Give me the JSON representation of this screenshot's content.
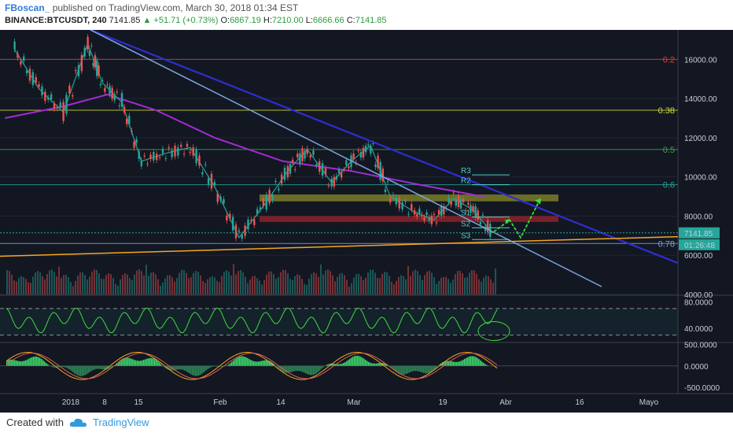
{
  "header": {
    "author": "FBoscan_",
    "published": "published on TradingView.com, March 30, 2018 01:34 EST",
    "symbol": "BINANCE:BTCUSDT, 240",
    "last": "7141.85",
    "change": "+51.71 (+0.73%)",
    "o_label": "O:",
    "o_value": "6867.19",
    "h_label": "H:",
    "h_value": "7210.00",
    "l_label": "L:",
    "l_value": "6666.66",
    "c_label": "C:",
    "c_value": "7141.85"
  },
  "footer": {
    "created_with": "Created with",
    "brand": "TradingView"
  },
  "colors": {
    "background": "#131722",
    "green": "#26a69a",
    "red": "#ef5350",
    "blue": "#3a3ad6",
    "purple": "#a32bd6",
    "orange": "#f5a623"
  },
  "chart_data": {
    "type": "line",
    "price_axis": {
      "ticks": [
        "16000.00",
        "14000.00",
        "12000.00",
        "10000.00",
        "8000.00",
        "6000.00",
        "4000.00"
      ],
      "ylim": [
        4000,
        17500
      ]
    },
    "time_axis": {
      "ticks": [
        "2018",
        "8",
        "15",
        "Feb",
        "14",
        "Mar",
        "19",
        "Abr",
        "16",
        "Mayo"
      ]
    },
    "price_series": {
      "name": "BTCUSDT",
      "x": [
        "2017-12-22",
        "2017-12-27",
        "2018-01-01",
        "2018-01-06",
        "2018-01-09",
        "2018-01-13",
        "2018-01-17",
        "2018-01-22",
        "2018-01-27",
        "2018-02-01",
        "2018-02-06",
        "2018-02-11",
        "2018-02-16",
        "2018-02-20",
        "2018-02-25",
        "2018-03-01",
        "2018-03-05",
        "2018-03-09",
        "2018-03-14",
        "2018-03-18",
        "2018-03-22",
        "2018-03-26",
        "2018-03-30"
      ],
      "values": [
        16500,
        14500,
        13300,
        16800,
        14800,
        13800,
        10800,
        11200,
        11500,
        9500,
        6900,
        8500,
        10300,
        11400,
        9700,
        10800,
        11600,
        9000,
        8200,
        7800,
        8900,
        8300,
        7141.85
      ]
    },
    "ma_series": {
      "x": [
        "2017-12-20",
        "2018-01-01",
        "2018-01-10",
        "2018-01-20",
        "2018-02-01",
        "2018-02-15",
        "2018-03-01",
        "2018-03-15",
        "2018-03-28"
      ],
      "values": [
        13000,
        13600,
        14200,
        13400,
        12000,
        10800,
        10300,
        9600,
        9000
      ]
    },
    "fib_levels": [
      {
        "label": "0.2",
        "price": 16000,
        "color": "#e53935"
      },
      {
        "label": "0.38",
        "price": 13400,
        "color": "#cddc39"
      },
      {
        "label": "0.5",
        "price": 11400,
        "color": "#43a047"
      },
      {
        "label": "0.6",
        "price": 9600,
        "color": "#26a69a"
      },
      {
        "label": "0.78",
        "price": 6600,
        "color": "#7e9fd8"
      }
    ],
    "pivots": [
      {
        "label": "R3",
        "price": 10100
      },
      {
        "label": "R2",
        "price": 9600
      },
      {
        "label": "S1",
        "price": 7950
      },
      {
        "label": "S2",
        "price": 7400
      },
      {
        "label": "S3",
        "price": 6800
      }
    ],
    "current_price_label": "7141.85",
    "countdown_label": "01:26:48",
    "rsi": {
      "ticks": [
        "80.0000",
        "40.0000"
      ],
      "ylim": [
        20,
        90
      ]
    },
    "macd": {
      "ticks": [
        "500.0000",
        "0.0000",
        "-500.0000"
      ],
      "ylim": [
        -650,
        550
      ]
    }
  }
}
